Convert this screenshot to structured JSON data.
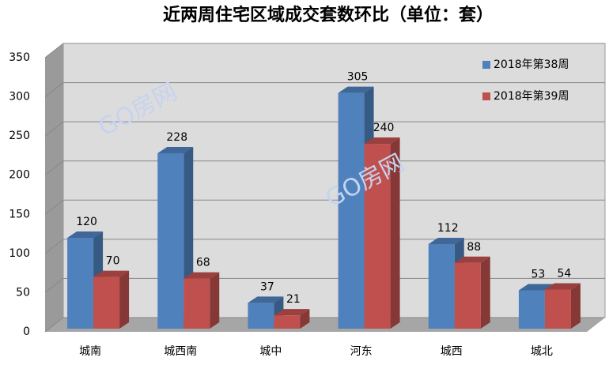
{
  "chart_data": {
    "type": "bar3d",
    "title": "近两周住宅区域成交套数环比（单位：套）",
    "categories": [
      "城南",
      "城西南",
      "城中",
      "河东",
      "城西",
      "城北"
    ],
    "series": [
      {
        "name": "2018年第38周",
        "color": "#4f81bd",
        "values": [
          120,
          228,
          37,
          305,
          112,
          53
        ]
      },
      {
        "name": "2018年第39周",
        "color": "#c0504d",
        "values": [
          70,
          68,
          21,
          240,
          88,
          54
        ]
      }
    ],
    "ylim": [
      0,
      350
    ],
    "yticks": [
      0,
      50,
      100,
      150,
      200,
      250,
      300,
      350
    ],
    "grid": true,
    "legend": "top-right",
    "watermark": "GO房网"
  }
}
